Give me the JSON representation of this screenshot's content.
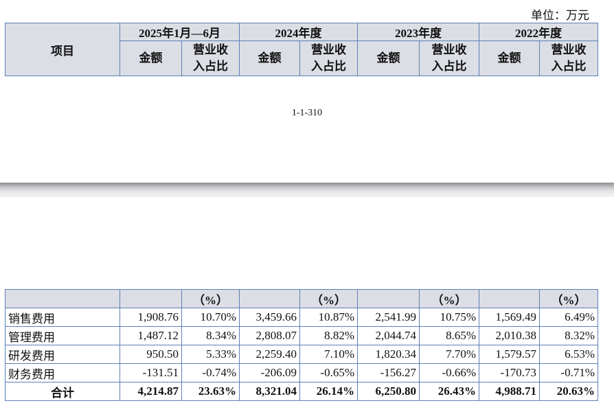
{
  "unit": "单位：万元",
  "header": {
    "item": "项目",
    "periods": [
      "2025年1月—6月",
      "2024年度",
      "2023年度",
      "2022年度"
    ],
    "amount": "金额",
    "ratio_line1": "营业收",
    "ratio_line2": "入占比",
    "pct": "（%）"
  },
  "page_number": "1-1-310",
  "rows": [
    {
      "label": "销售费用",
      "values": [
        "1,908.76",
        "10.70%",
        "3,459.66",
        "10.87%",
        "2,541.99",
        "10.75%",
        "1,569.49",
        "6.49%"
      ]
    },
    {
      "label": "管理费用",
      "values": [
        "1,487.12",
        "8.34%",
        "2,808.07",
        "8.82%",
        "2,044.74",
        "8.65%",
        "2,010.38",
        "8.32%"
      ]
    },
    {
      "label": "研发费用",
      "values": [
        "950.50",
        "5.33%",
        "2,259.40",
        "7.10%",
        "1,820.34",
        "7.70%",
        "1,579.57",
        "6.53%"
      ]
    },
    {
      "label": "财务费用",
      "values": [
        "-131.51",
        "-0.74%",
        "-206.09",
        "-0.65%",
        "-156.27",
        "-0.66%",
        "-170.73",
        "-0.71%"
      ]
    }
  ],
  "total": {
    "label": "合计",
    "values": [
      "4,214.87",
      "23.63%",
      "8,321.04",
      "26.14%",
      "6,250.80",
      "26.43%",
      "4,988.71",
      "20.63%"
    ]
  }
}
